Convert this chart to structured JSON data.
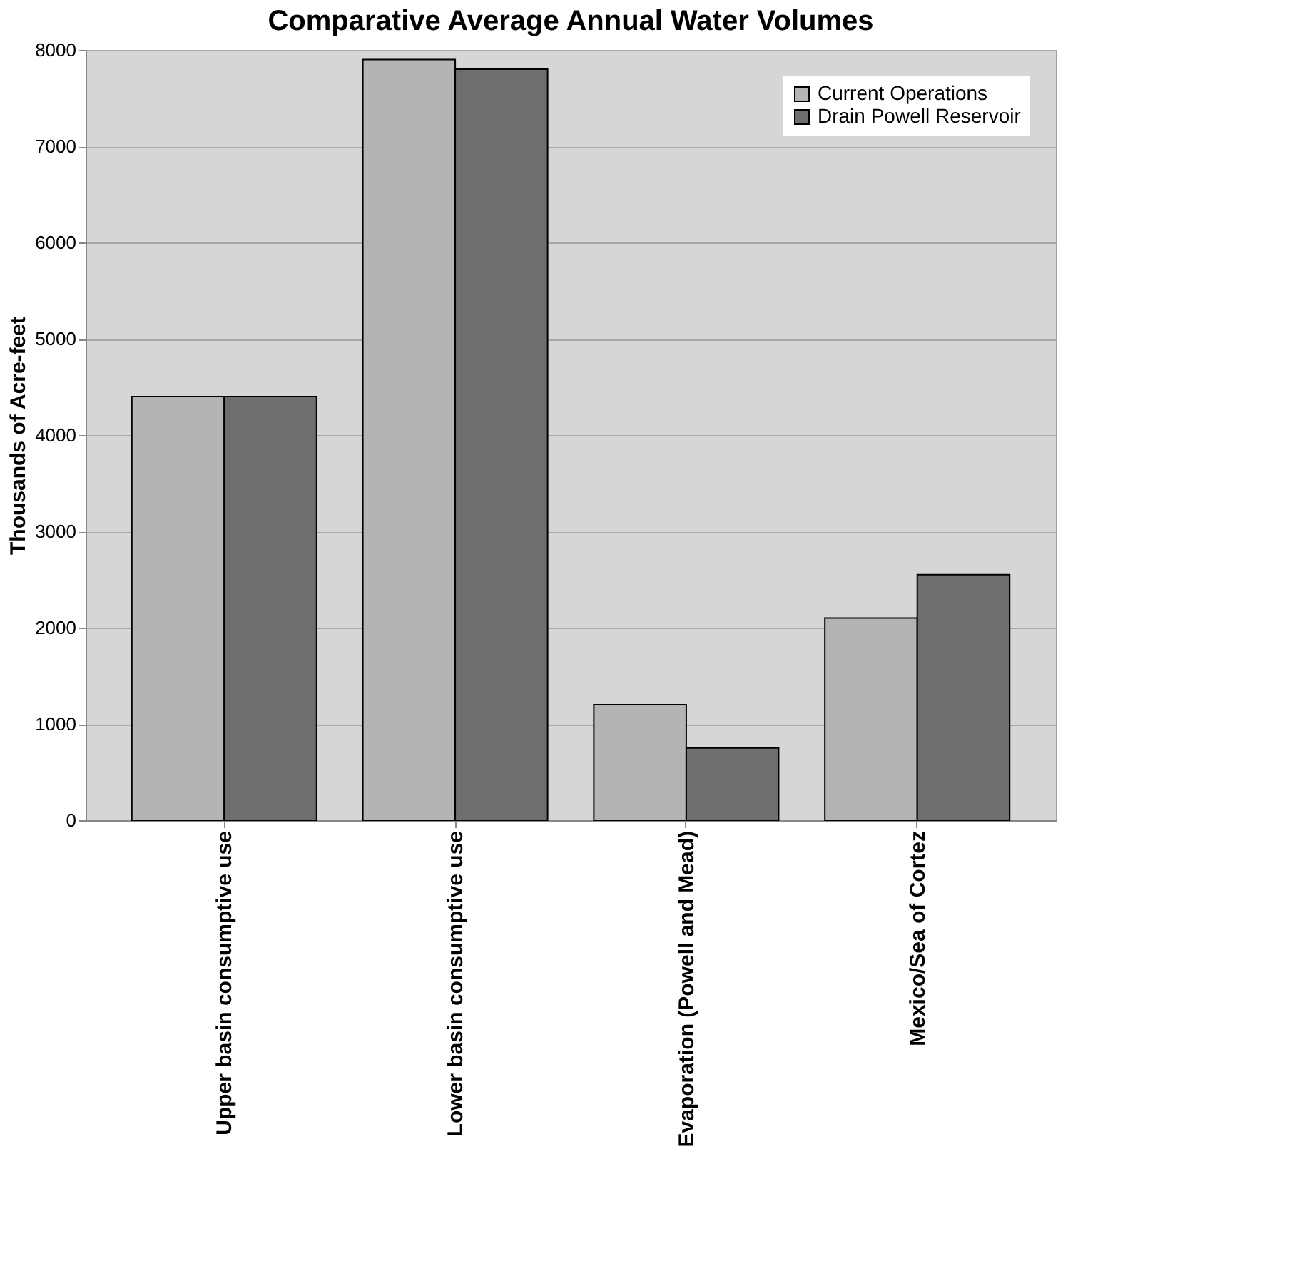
{
  "chart_data": {
    "type": "bar",
    "title": "Comparative Average Annual Water Volumes",
    "ylabel": "Thousands of Acre-feet",
    "categories": [
      "Upper basin consumptive use",
      "Lower basin consumptive use",
      "Evaporation (Powell and Mead)",
      "Mexico/Sea of Cortez"
    ],
    "series": [
      {
        "name": "Current Operations",
        "color": "#b4b4b4",
        "values": [
          4400,
          7900,
          1200,
          2100
        ]
      },
      {
        "name": "Drain Powell Reservoir",
        "color": "#6e6e6e",
        "values": [
          4400,
          7800,
          750,
          2550
        ]
      }
    ],
    "ylim": [
      0,
      8000
    ],
    "yticks": [
      0,
      1000,
      2000,
      3000,
      4000,
      5000,
      6000,
      7000,
      8000
    ],
    "grid": "y",
    "legend": "top right"
  }
}
